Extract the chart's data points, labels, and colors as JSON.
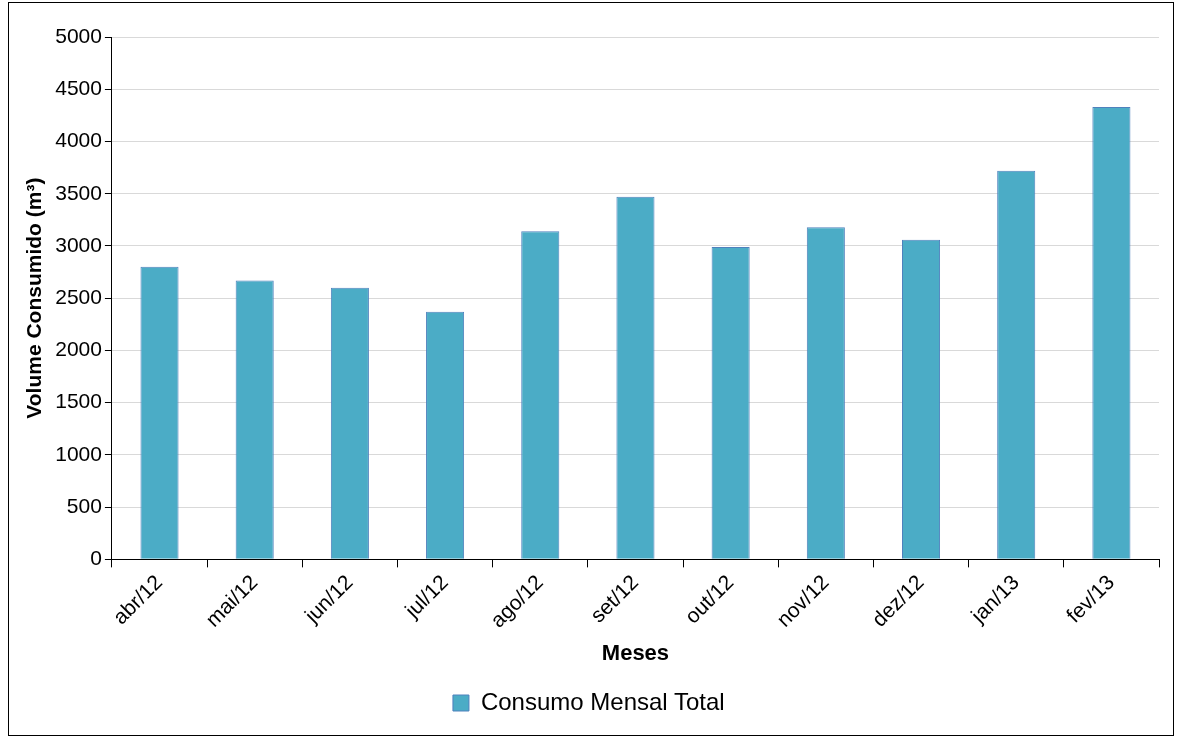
{
  "chart_data": {
    "type": "bar",
    "xlabel": "Meses",
    "ylabel": "Volume Consumido (m³)",
    "categories": [
      "abr/12",
      "mai/12",
      "jun/12",
      "jul/12",
      "ago/12",
      "set/12",
      "out/12",
      "nov/12",
      "dez/12",
      "jan/13",
      "fev/13"
    ],
    "series": [
      {
        "name": "Consumo Mensal Total",
        "color": "#4bacc6",
        "values": [
          2800,
          2670,
          2600,
          2370,
          3140,
          3470,
          2990,
          3180,
          3060,
          3720,
          4330
        ]
      }
    ],
    "ylim": [
      0,
      5000
    ],
    "yticks": [
      0,
      500,
      1000,
      1500,
      2000,
      2500,
      3000,
      3500,
      4000,
      4500,
      5000
    ],
    "grid": "y",
    "legend": "bottom"
  }
}
